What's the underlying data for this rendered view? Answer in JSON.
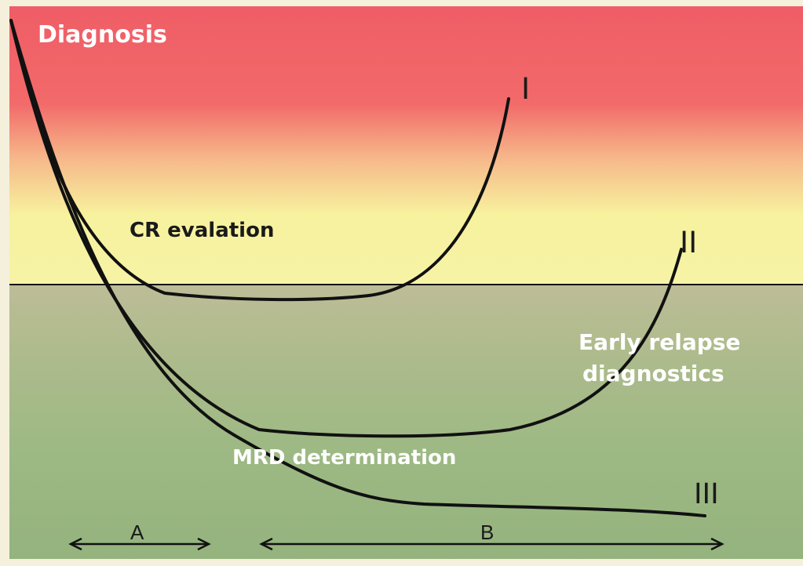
{
  "labels": {
    "diagnosis": "Diagnosis",
    "cr": "CR evalation",
    "early_line1": "Early relapse",
    "early_line2": "diagnostics",
    "mrd": "MRD determination"
  },
  "curves": {
    "one": "I",
    "two": "II",
    "three": "III"
  },
  "intervals": {
    "a": "A",
    "b": "B"
  },
  "colors": {
    "top_red": "#ef5d66",
    "mid_yellow": "#f7f29e",
    "bottom_green": "#9db984",
    "line": "#111111",
    "text_light": "#ffffff",
    "text_dark": "#1a1a1a"
  }
}
